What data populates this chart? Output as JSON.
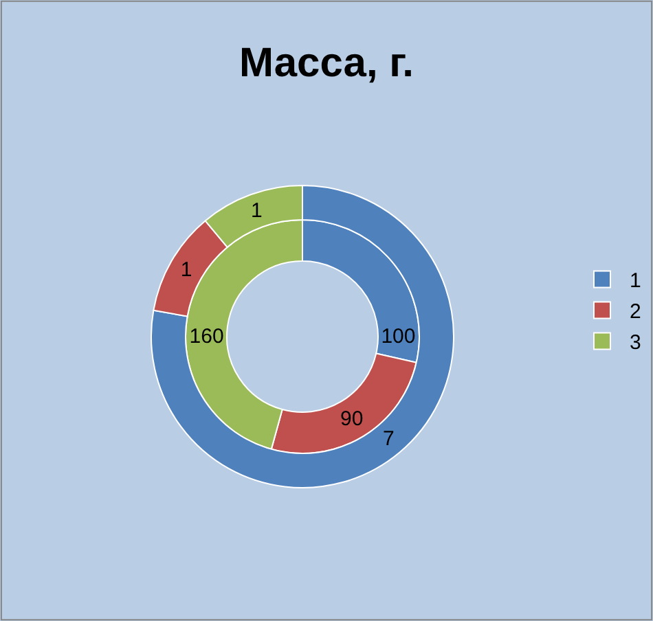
{
  "chart_data": {
    "type": "donut",
    "title": "Масса, г.",
    "categories": [
      "1",
      "2",
      "3"
    ],
    "colors": [
      "#4f81bd",
      "#c0504d",
      "#9bbb59"
    ],
    "series": [
      {
        "values": [
          100,
          90,
          160
        ]
      },
      {
        "values": [
          7,
          1,
          1
        ]
      }
    ],
    "data_labels": true,
    "legend": "right"
  }
}
